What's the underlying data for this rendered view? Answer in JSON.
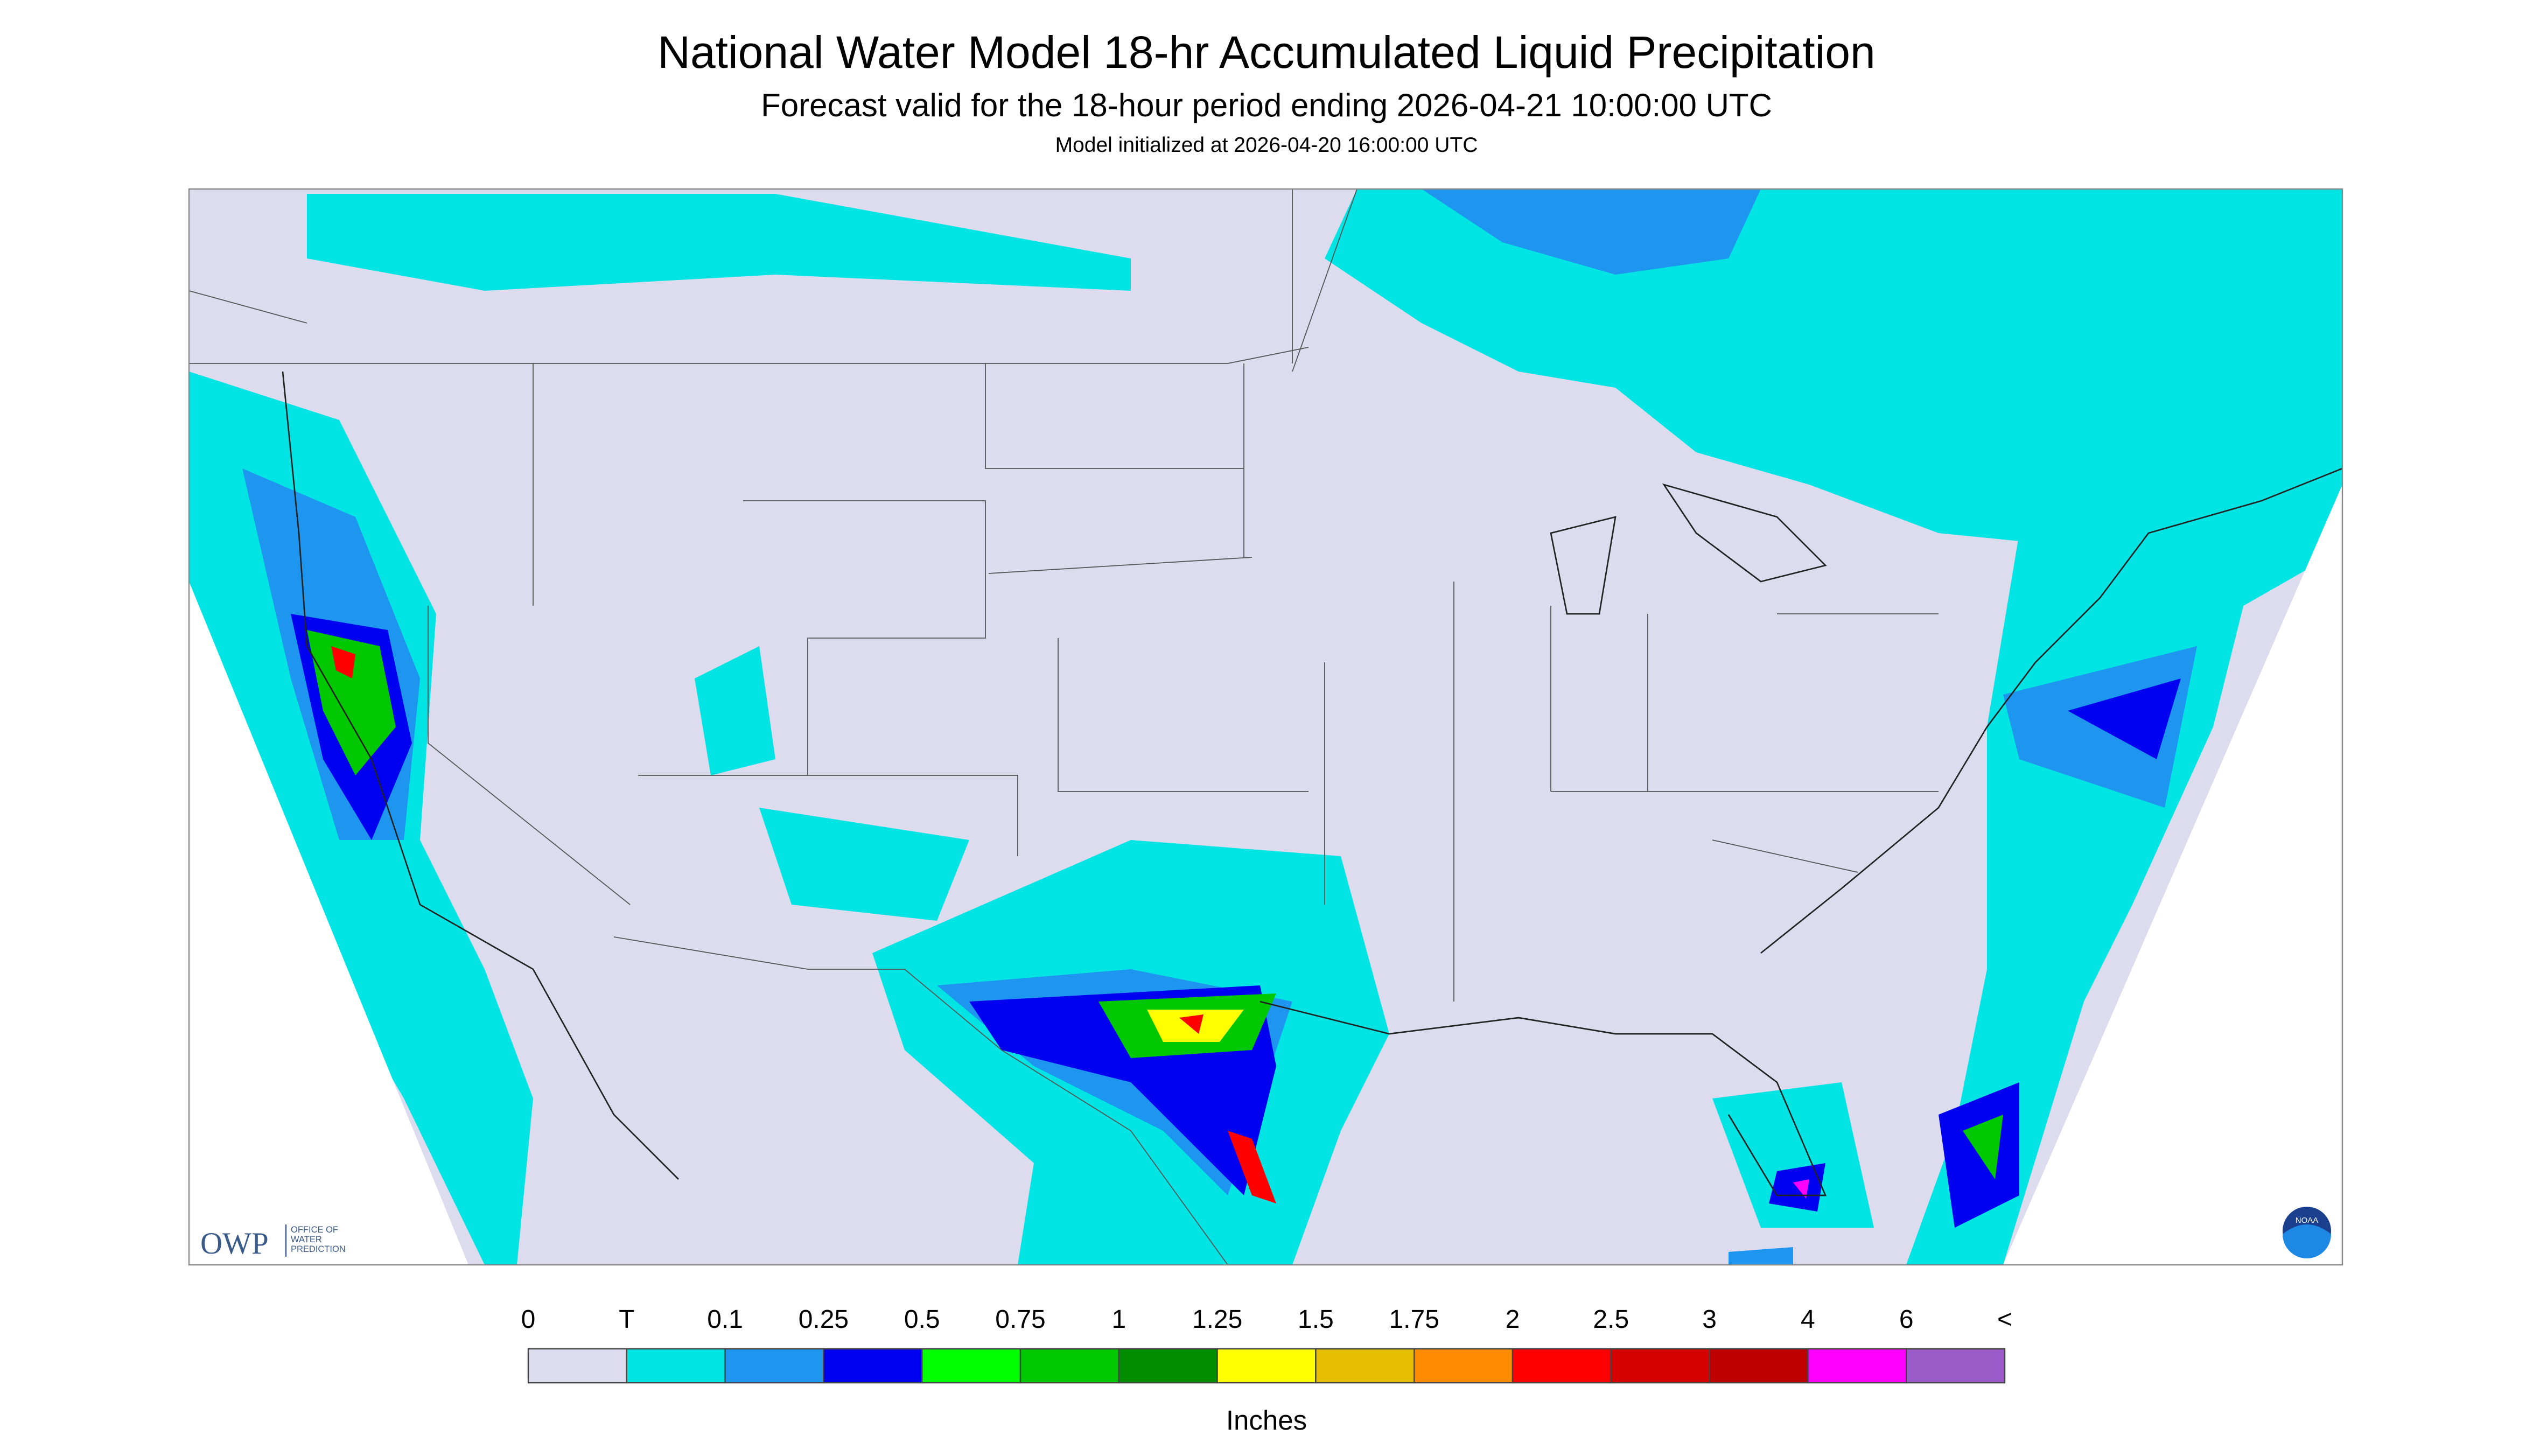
{
  "header": {
    "title": "National Water Model 18-hr Accumulated Liquid Precipitation",
    "subtitle": "Forecast valid for the 18-hour period ending 2026-04-21 10:00:00 UTC",
    "note": "Model initialized at 2026-04-20 16:00:00 UTC"
  },
  "logos": {
    "owp": "OWP",
    "owp_text": [
      "OFFICE OF",
      "WATER",
      "PREDICTION"
    ],
    "noaa": "NOAA"
  },
  "legend": {
    "labels": [
      "0",
      "T",
      "0.1",
      "0.25",
      "0.5",
      "0.75",
      "1",
      "1.25",
      "1.5",
      "1.75",
      "2",
      "2.5",
      "3",
      "4",
      "6",
      "<"
    ],
    "colors": [
      "#dcdcee",
      "#00e4e4",
      "#1e96f0",
      "#0000f0",
      "#00ff00",
      "#00c800",
      "#008c00",
      "#ffff00",
      "#e6be00",
      "#ff8c00",
      "#ff0000",
      "#d70000",
      "#be0000",
      "#ff00ff",
      "#9a5ac8"
    ],
    "unit": "Inches"
  }
}
